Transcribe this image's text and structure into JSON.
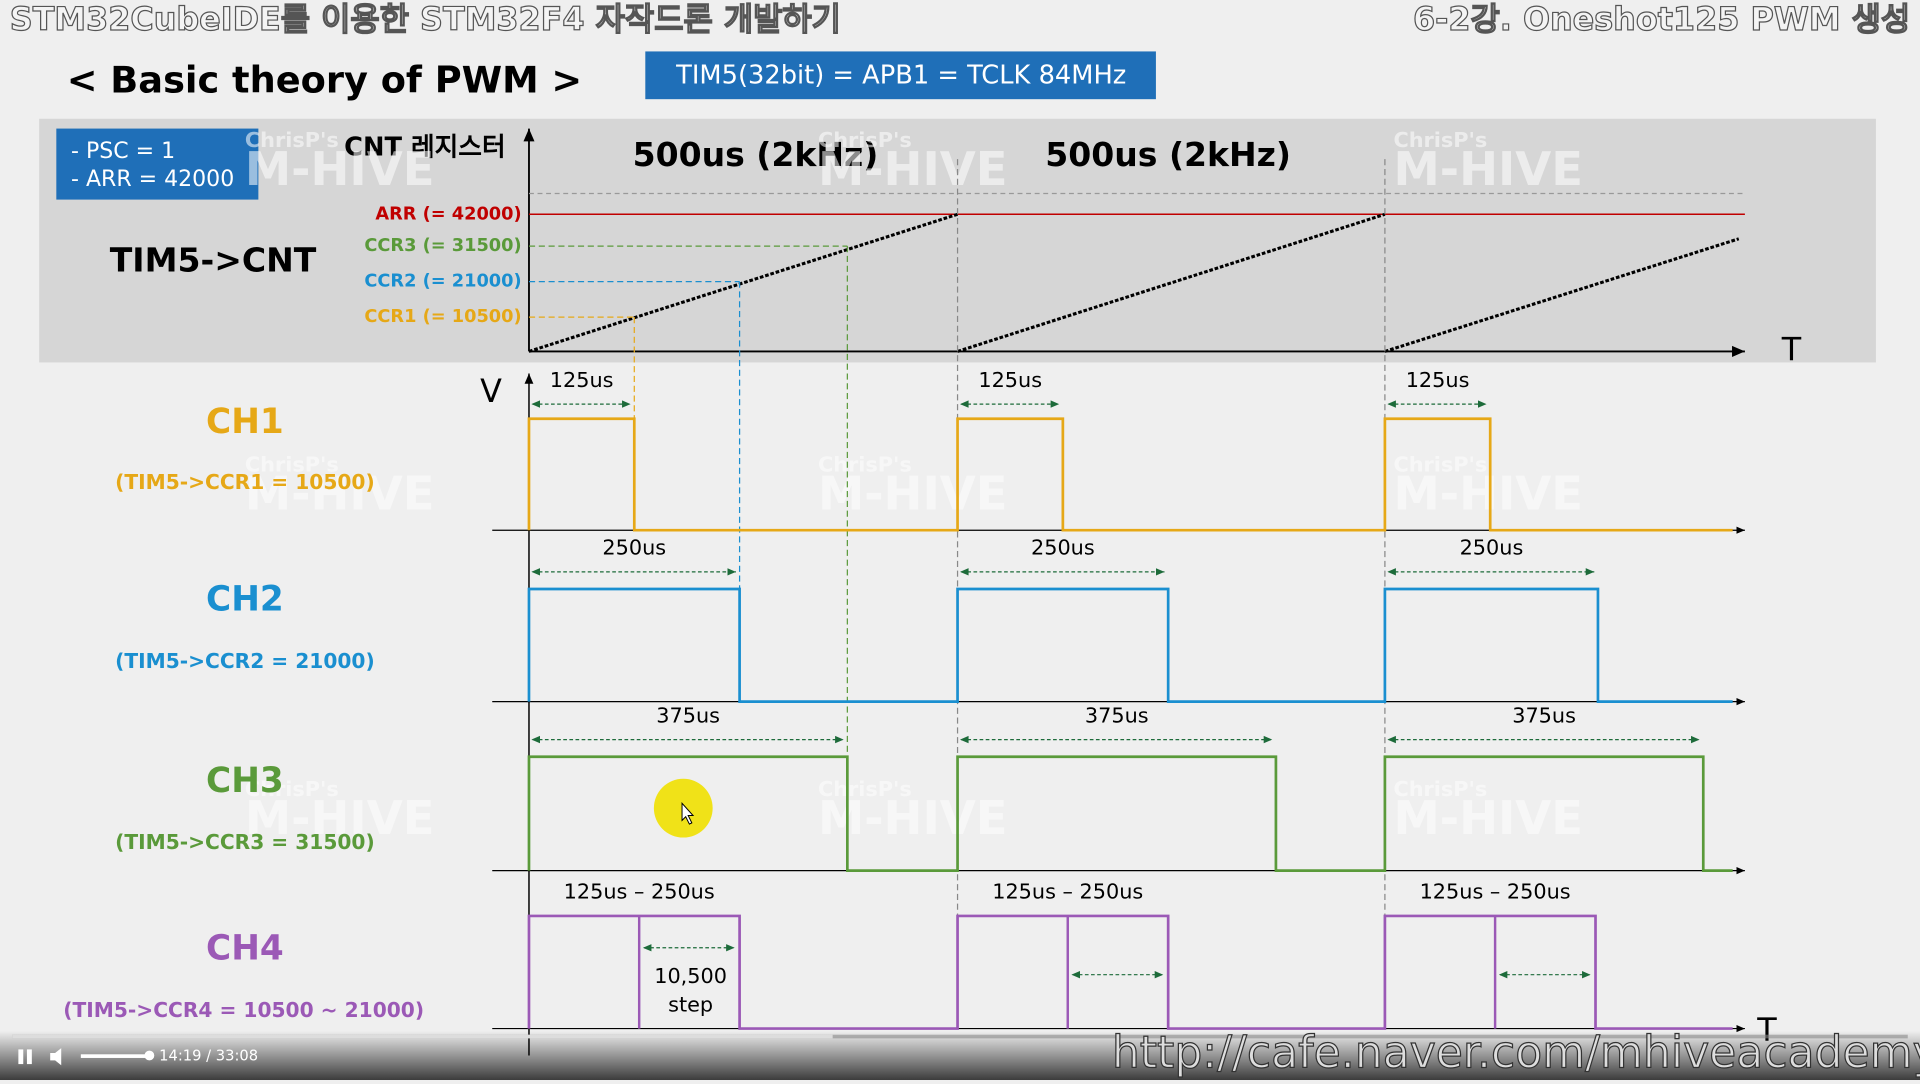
{
  "header": {
    "title": "STM32CubeIDE를 이용한 STM32F4 자작드론 개발하기",
    "lecture": "6-2강. Oneshot125 PWM 생성"
  },
  "slide": {
    "heading": "< Basic theory of PWM >",
    "clock": "TIM5(32bit) = APB1 = TCLK 84MHz",
    "settings": [
      "- PSC = 1",
      "- ARR = 42000"
    ],
    "cnt_axis": "CNT 레지스터",
    "cnt_label": "TIM5->CNT",
    "periods": [
      "500us (2kHz)",
      "500us (2kHz)"
    ],
    "levels": [
      "ARR (= 42000)",
      "CCR3 (= 31500)",
      "CCR2 (= 21000)",
      "CCR1 (= 10500)"
    ],
    "time_axis": "T",
    "voltage_axis": "V",
    "watermark": [
      "ChrisP's",
      "M-HIVE"
    ],
    "channels": [
      {
        "name": "CH1",
        "register": "(TIM5->CCR1 = 10500)",
        "durations": [
          "125us",
          "125us",
          "125us"
        ]
      },
      {
        "name": "CH2",
        "register": "(TIM5->CCR2 = 21000)",
        "durations": [
          "250us",
          "250us",
          "250us"
        ]
      },
      {
        "name": "CH3",
        "register": "(TIM5->CCR3 = 31500)",
        "durations": [
          "375us",
          "375us",
          "375us"
        ]
      },
      {
        "name": "CH4",
        "register": "(TIM5->CCR4 = 10500 ~ 21000)",
        "durations": [
          "125us – 250us",
          "125us – 250us",
          "125us – 250us"
        ],
        "note": [
          "10,500",
          "step"
        ]
      }
    ]
  },
  "player": {
    "time": "14:19 / 33:08",
    "url": "http://cafe.naver.com/mhiveacademy"
  }
}
